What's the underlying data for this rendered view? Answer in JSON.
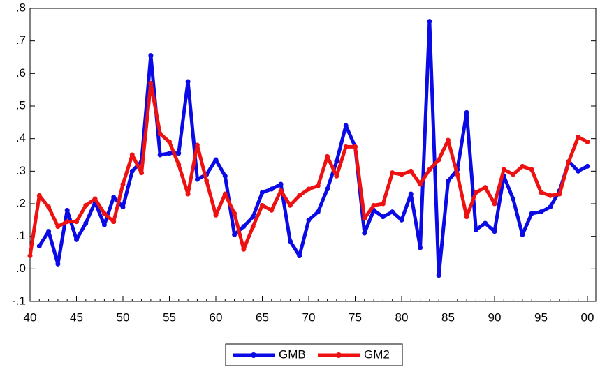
{
  "chart_data": {
    "type": "line",
    "categories": [
      "40",
      null,
      null,
      null,
      null,
      "45",
      null,
      null,
      null,
      null,
      "50",
      null,
      null,
      null,
      null,
      "55",
      null,
      null,
      null,
      null,
      "60",
      null,
      null,
      null,
      null,
      "65",
      null,
      null,
      null,
      null,
      "70",
      null,
      null,
      null,
      null,
      "75",
      null,
      null,
      null,
      null,
      "80",
      null,
      null,
      null,
      null,
      "85",
      null,
      null,
      null,
      null,
      "90",
      null,
      null,
      null,
      null,
      "95",
      null,
      null,
      null,
      null,
      "00"
    ],
    "series": [
      {
        "name": "GMB",
        "color": "#0a0ae6",
        "values": [
          null,
          0.07,
          0.115,
          0.015,
          0.18,
          0.09,
          0.14,
          0.205,
          0.135,
          0.22,
          0.19,
          0.3,
          0.33,
          0.655,
          0.35,
          0.355,
          0.355,
          0.575,
          0.275,
          0.29,
          0.335,
          0.285,
          0.105,
          0.13,
          0.16,
          0.235,
          0.245,
          0.26,
          0.085,
          0.04,
          0.15,
          0.175,
          0.245,
          0.33,
          0.44,
          0.375,
          0.11,
          0.18,
          0.16,
          0.175,
          0.15,
          0.23,
          0.065,
          0.76,
          -0.02,
          0.27,
          0.305,
          0.48,
          0.12,
          0.14,
          0.115,
          0.285,
          0.215,
          0.105,
          0.17,
          0.175,
          0.19,
          0.24,
          0.33,
          0.3,
          0.315
        ]
      },
      {
        "name": "GM2",
        "color": "#ee1111",
        "values": [
          0.04,
          0.225,
          0.19,
          0.13,
          0.145,
          0.145,
          0.195,
          0.215,
          0.17,
          0.145,
          0.26,
          0.35,
          0.295,
          0.57,
          0.415,
          0.39,
          0.32,
          0.23,
          0.38,
          0.27,
          0.165,
          0.23,
          0.17,
          0.06,
          0.13,
          0.195,
          0.18,
          0.24,
          0.195,
          0.225,
          0.245,
          0.255,
          0.345,
          0.285,
          0.375,
          0.375,
          0.155,
          0.195,
          0.2,
          0.295,
          0.29,
          0.3,
          0.26,
          0.305,
          0.335,
          0.395,
          0.29,
          0.16,
          0.235,
          0.25,
          0.2,
          0.305,
          0.29,
          0.315,
          0.305,
          0.235,
          0.225,
          0.23,
          0.33,
          0.405,
          0.39
        ]
      }
    ],
    "ylim": [
      -0.1,
      0.8
    ],
    "yticks": [
      {
        "value": -0.1,
        "label": "-.1"
      },
      {
        "value": 0.0,
        "label": ".0"
      },
      {
        "value": 0.1,
        "label": ".1"
      },
      {
        "value": 0.2,
        "label": ".2"
      },
      {
        "value": 0.3,
        "label": ".3"
      },
      {
        "value": 0.4,
        "label": ".4"
      },
      {
        "value": 0.5,
        "label": ".5"
      },
      {
        "value": 0.6,
        "label": ".6"
      },
      {
        "value": 0.7,
        "label": ".7"
      },
      {
        "value": 0.8,
        "label": ".8"
      }
    ],
    "grid": false,
    "legend": "bottom"
  }
}
